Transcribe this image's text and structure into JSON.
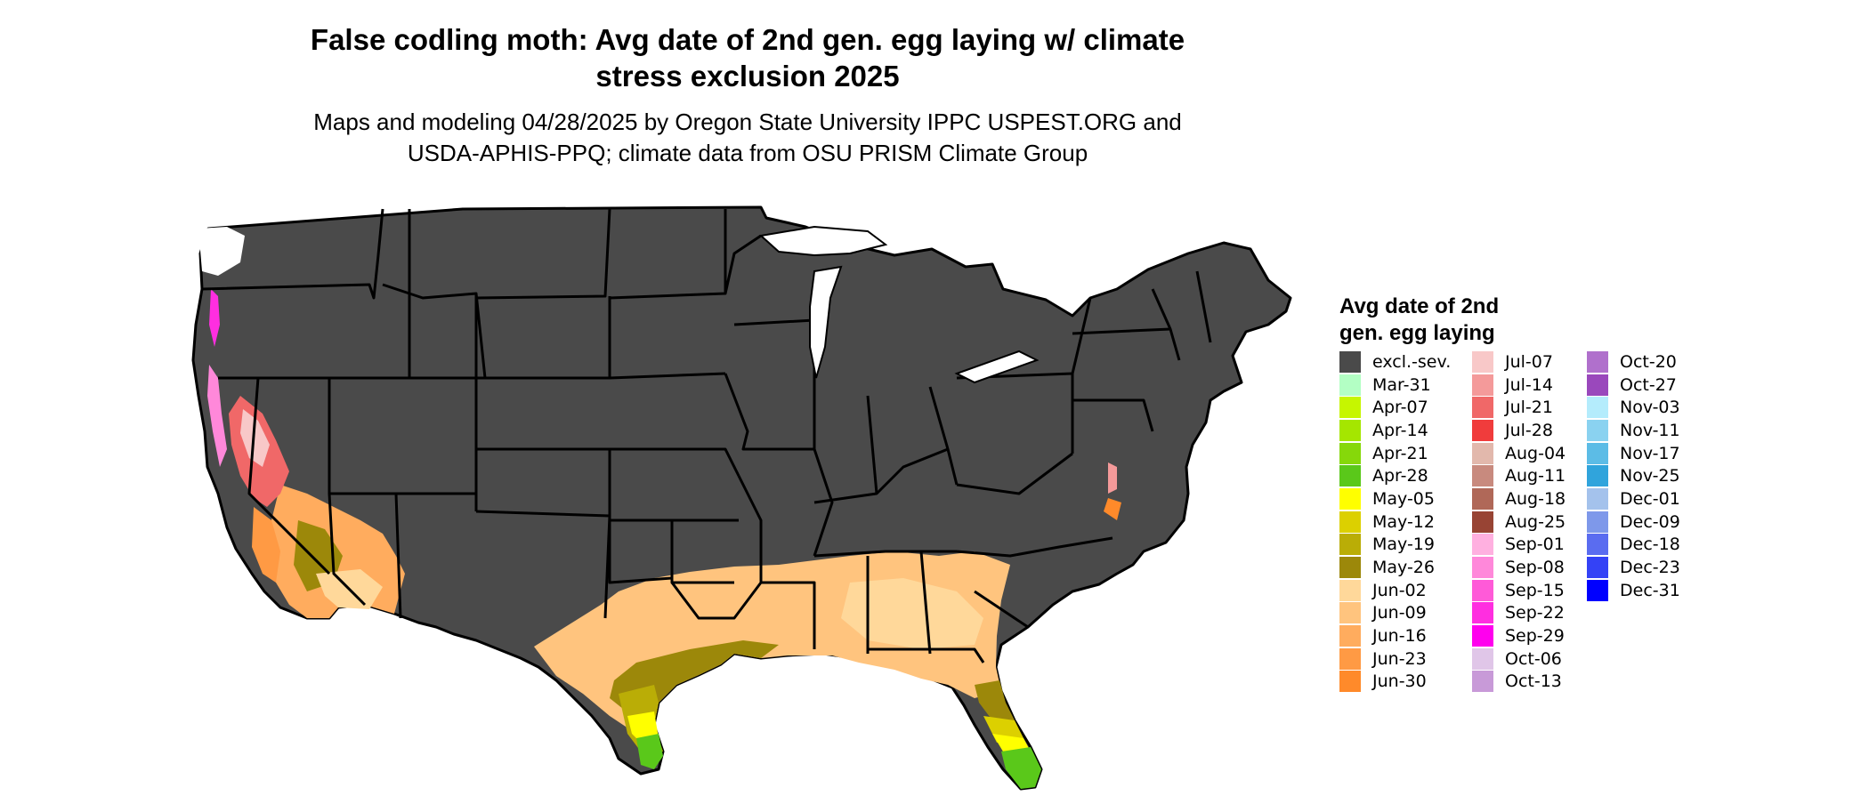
{
  "map": {
    "title_lines": [
      "False codling moth: Avg date of 2nd gen. egg laying w/ climate",
      "stress exclusion 2025"
    ],
    "subtitle_lines": [
      "Maps and modeling 04/28/2025 by Oregon State University IPPC USPEST.ORG and",
      "USDA-APHIS-PPQ; climate data from OSU PRISM Climate Group"
    ],
    "region": "Contiguous United States",
    "excluded_color": "#4a4a4a",
    "border_color": "#000000"
  },
  "legend": {
    "title_lines": [
      "Avg date of 2nd",
      "gen. egg laying"
    ],
    "columns": [
      [
        {
          "label": "excl.-sev.",
          "color": "#4a4a4a"
        },
        {
          "label": "Mar-31",
          "color": "#b3ffc4"
        },
        {
          "label": "Apr-07",
          "color": "#c6f600"
        },
        {
          "label": "Apr-14",
          "color": "#a5e600"
        },
        {
          "label": "Apr-21",
          "color": "#86d80a"
        },
        {
          "label": "Apr-28",
          "color": "#5ac81a"
        },
        {
          "label": "May-05",
          "color": "#ffff00"
        },
        {
          "label": "May-12",
          "color": "#dcd000"
        },
        {
          "label": "May-19",
          "color": "#baad06"
        },
        {
          "label": "May-26",
          "color": "#9c880a"
        },
        {
          "label": "Jun-02",
          "color": "#ffd89a"
        },
        {
          "label": "Jun-09",
          "color": "#ffc47e"
        },
        {
          "label": "Jun-16",
          "color": "#ffac5e"
        },
        {
          "label": "Jun-23",
          "color": "#ff9a44"
        },
        {
          "label": "Jun-30",
          "color": "#ff8a2a"
        }
      ],
      [
        {
          "label": "Jul-07",
          "color": "#f8c8c8"
        },
        {
          "label": "Jul-14",
          "color": "#f49a9a"
        },
        {
          "label": "Jul-21",
          "color": "#f06868"
        },
        {
          "label": "Jul-28",
          "color": "#f03c3c"
        },
        {
          "label": "Aug-04",
          "color": "#e2b8ac"
        },
        {
          "label": "Aug-11",
          "color": "#c88a7e"
        },
        {
          "label": "Aug-18",
          "color": "#b06858"
        },
        {
          "label": "Aug-25",
          "color": "#984434"
        },
        {
          "label": "Sep-01",
          "color": "#ffb0e0"
        },
        {
          "label": "Sep-08",
          "color": "#ff88da"
        },
        {
          "label": "Sep-15",
          "color": "#ff5ad8"
        },
        {
          "label": "Sep-22",
          "color": "#ff2ee0"
        },
        {
          "label": "Sep-29",
          "color": "#ff00ee"
        },
        {
          "label": "Oct-06",
          "color": "#e0c6e8"
        },
        {
          "label": "Oct-13",
          "color": "#c89ad8"
        }
      ],
      [
        {
          "label": "Oct-20",
          "color": "#b070cc"
        },
        {
          "label": "Oct-27",
          "color": "#9a48bc"
        },
        {
          "label": "Nov-03",
          "color": "#b4ecfc"
        },
        {
          "label": "Nov-11",
          "color": "#8ad2f0"
        },
        {
          "label": "Nov-17",
          "color": "#5cbce6"
        },
        {
          "label": "Nov-25",
          "color": "#30a4dc"
        },
        {
          "label": "Dec-01",
          "color": "#a4c2ec"
        },
        {
          "label": "Dec-09",
          "color": "#7e98ea"
        },
        {
          "label": "Dec-18",
          "color": "#5a6cf0"
        },
        {
          "label": "Dec-23",
          "color": "#3442f6"
        },
        {
          "label": "Dec-31",
          "color": "#0000ff"
        }
      ]
    ]
  }
}
